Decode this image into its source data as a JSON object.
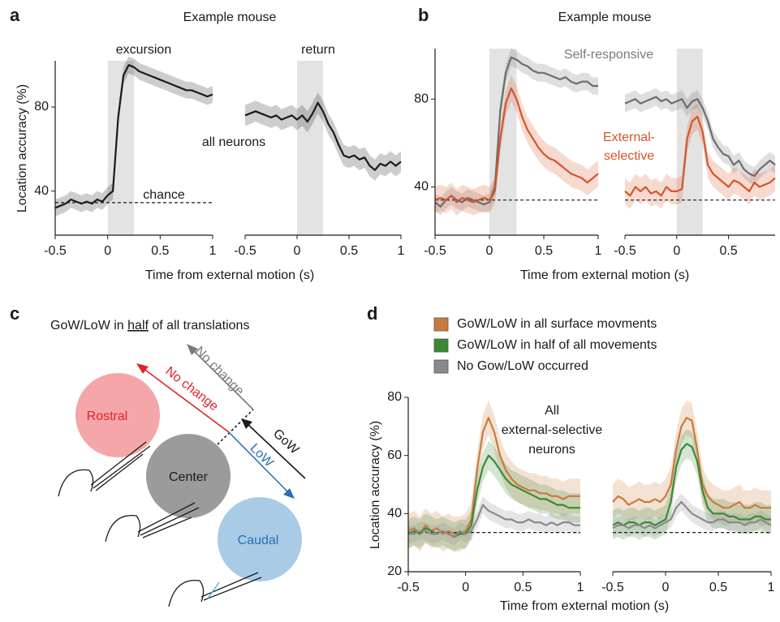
{
  "chart_data": [
    {
      "type": "line",
      "panel": "a",
      "title": "Example mouse",
      "xlabel": "Time from external motion (s)",
      "ylabel": "Location accuracy (%)",
      "x": [
        -0.5,
        -0.45,
        -0.4,
        -0.35,
        -0.3,
        -0.25,
        -0.2,
        -0.15,
        -0.1,
        -0.05,
        0,
        0.05,
        0.1,
        0.15,
        0.2,
        0.25,
        0.3,
        0.35,
        0.4,
        0.45,
        0.5,
        0.55,
        0.6,
        0.65,
        0.7,
        0.75,
        0.8,
        0.85,
        0.9,
        0.95,
        1
      ],
      "xlim": [
        -0.5,
        1
      ],
      "xticks": [
        -0.5,
        0,
        0.5,
        1
      ],
      "ylim": [
        19,
        102
      ],
      "yticks": [
        40,
        80
      ],
      "shade": [
        0,
        0.25
      ],
      "chance": 34.5,
      "series": [
        {
          "color": "#1a1a1a",
          "error": 4,
          "values": [
            32,
            33,
            34,
            36,
            35,
            34,
            35,
            34,
            36,
            35,
            38,
            40,
            75,
            95,
            100,
            99,
            97,
            96,
            95,
            94,
            93,
            92,
            91,
            90,
            89,
            88,
            88,
            87,
            86,
            85,
            86
          ]
        }
      ],
      "annotations": [
        {
          "text": "excursion",
          "color": "#1a1a1a"
        },
        {
          "text": "chance",
          "color": "#1a1a1a"
        }
      ]
    },
    {
      "type": "line",
      "x": [
        -0.5,
        -0.45,
        -0.4,
        -0.35,
        -0.3,
        -0.25,
        -0.2,
        -0.15,
        -0.1,
        -0.05,
        0,
        0.05,
        0.1,
        0.15,
        0.2,
        0.25,
        0.3,
        0.35,
        0.4,
        0.45,
        0.5,
        0.55,
        0.6,
        0.65,
        0.7,
        0.75,
        0.8,
        0.85,
        0.9,
        0.95,
        1
      ],
      "xlim": [
        -0.5,
        1
      ],
      "xticks": [
        -0.5,
        0,
        0.5,
        1
      ],
      "ylim": [
        19,
        102
      ],
      "shade": [
        0,
        0.25
      ],
      "series": [
        {
          "color": "#1a1a1a",
          "error": 5,
          "values": [
            76,
            77,
            78,
            77,
            76,
            75,
            76,
            74,
            75,
            76,
            74,
            76,
            73,
            77,
            82,
            78,
            72,
            68,
            62,
            57,
            56,
            57,
            55,
            56,
            52,
            50,
            53,
            52,
            54,
            52,
            54
          ]
        }
      ],
      "annotations": [
        {
          "text": "return",
          "color": "#1a1a1a"
        },
        {
          "text": "all neurons",
          "color": "#1a1a1a"
        }
      ]
    },
    {
      "type": "line",
      "panel": "b",
      "title": "Example mouse",
      "xlabel": "Time from external motion (s)",
      "x": [
        -0.5,
        -0.45,
        -0.4,
        -0.35,
        -0.3,
        -0.25,
        -0.2,
        -0.15,
        -0.1,
        -0.05,
        0,
        0.05,
        0.1,
        0.15,
        0.2,
        0.25,
        0.3,
        0.35,
        0.4,
        0.45,
        0.5,
        0.55,
        0.6,
        0.65,
        0.7,
        0.75,
        0.8,
        0.85,
        0.9,
        0.95,
        1
      ],
      "xlim": [
        -0.5,
        1
      ],
      "xticks": [
        -0.5,
        0,
        0.5,
        1
      ],
      "ylim": [
        18,
        103
      ],
      "yticks": [
        40,
        80
      ],
      "shade": [
        0,
        0.25
      ],
      "chance": 34,
      "series": [
        {
          "color": "#6d6d6d",
          "error": 4,
          "values": [
            33,
            31,
            34,
            36,
            34,
            33,
            35,
            34,
            33,
            32,
            33,
            40,
            75,
            92,
            99,
            98,
            96,
            95,
            93,
            92,
            92,
            91,
            90,
            89,
            90,
            88,
            87,
            88,
            88,
            86,
            86
          ]
        },
        {
          "color": "#d4552b",
          "error": 6,
          "values": [
            34,
            35,
            34,
            36,
            33,
            35,
            34,
            33,
            34,
            35,
            34,
            38,
            62,
            78,
            85,
            80,
            72,
            66,
            62,
            58,
            55,
            53,
            52,
            50,
            48,
            46,
            45,
            44,
            42,
            44,
            46
          ]
        }
      ],
      "annotations": [
        {
          "text": "Self-responsive",
          "color": "#7a7a7a"
        }
      ]
    },
    {
      "type": "line",
      "x": [
        -0.5,
        -0.45,
        -0.4,
        -0.35,
        -0.3,
        -0.25,
        -0.2,
        -0.15,
        -0.1,
        -0.05,
        0,
        0.05,
        0.1,
        0.15,
        0.2,
        0.25,
        0.3,
        0.35,
        0.4,
        0.45,
        0.5,
        0.55,
        0.6,
        0.65,
        0.7,
        0.75,
        0.8,
        0.85,
        0.9,
        0.95
      ],
      "xlim": [
        -0.5,
        0.95
      ],
      "xticks": [
        -0.5,
        0,
        0.5
      ],
      "ylim": [
        18,
        103
      ],
      "shade": [
        0,
        0.25
      ],
      "chance": 34,
      "series": [
        {
          "color": "#6d6d6d",
          "error": 4,
          "values": [
            78,
            79,
            80,
            78,
            79,
            80,
            81,
            79,
            80,
            78,
            79,
            80,
            76,
            79,
            80,
            76,
            70,
            62,
            58,
            55,
            54,
            50,
            52,
            48,
            46,
            45,
            48,
            50,
            52,
            50
          ]
        },
        {
          "color": "#d4552b",
          "error": 6,
          "values": [
            38,
            36,
            40,
            38,
            40,
            37,
            38,
            36,
            40,
            38,
            38,
            39,
            62,
            70,
            72,
            65,
            50,
            46,
            44,
            42,
            40,
            43,
            42,
            40,
            38,
            42,
            40,
            41,
            42,
            44
          ]
        }
      ],
      "annotations": [
        {
          "text": "External-",
          "color": "#d4552b"
        },
        {
          "text": "selective",
          "color": "#d4552b"
        }
      ]
    },
    {
      "type": "line",
      "panel": "d",
      "xlabel": "Time from external motion (s)",
      "ylabel": "Location accuracy (%)",
      "x": [
        -0.5,
        -0.45,
        -0.4,
        -0.35,
        -0.3,
        -0.25,
        -0.2,
        -0.15,
        -0.1,
        -0.05,
        0,
        0.05,
        0.1,
        0.15,
        0.2,
        0.25,
        0.3,
        0.35,
        0.4,
        0.45,
        0.5,
        0.55,
        0.6,
        0.65,
        0.7,
        0.75,
        0.8,
        0.85,
        0.9,
        0.95,
        1
      ],
      "xlim": [
        -0.5,
        1
      ],
      "xticks": [
        -0.5,
        0,
        0.5,
        1
      ],
      "ylim": [
        20,
        80
      ],
      "yticks": [
        20,
        40,
        60,
        80
      ],
      "chance": 33.5,
      "series": [
        {
          "name": "GoW/LoW in all surface movments",
          "color": "#c97a3a",
          "error": 6,
          "values": [
            34,
            35,
            33,
            36,
            34,
            35,
            33,
            34,
            33,
            33,
            34,
            38,
            55,
            68,
            73,
            68,
            60,
            55,
            52,
            50,
            49,
            48,
            48,
            47,
            47,
            46,
            46,
            45,
            46,
            46,
            46
          ]
        },
        {
          "name": "GoW/LoW in half of all movements",
          "color": "#3a8a35",
          "error": 5,
          "values": [
            33,
            34,
            33,
            35,
            34,
            33,
            34,
            33,
            32,
            33,
            33,
            36,
            48,
            56,
            60,
            58,
            55,
            52,
            50,
            49,
            48,
            47,
            46,
            45,
            45,
            44,
            43,
            43,
            42,
            42,
            42
          ]
        },
        {
          "name": "No Gow/LoW occurred",
          "color": "#8a8a8a",
          "error": 3,
          "values": [
            33,
            33,
            34,
            34,
            33,
            33,
            34,
            33,
            32,
            34,
            33,
            34,
            38,
            43,
            41,
            40,
            39,
            38,
            38,
            37,
            37,
            38,
            37,
            37,
            36,
            37,
            36,
            37,
            37,
            36,
            36
          ]
        }
      ],
      "annotations": [
        {
          "text": "All",
          "color": "#1a1a1a"
        },
        {
          "text": "external-selective",
          "color": "#1a1a1a"
        },
        {
          "text": "neurons",
          "color": "#1a1a1a"
        }
      ]
    },
    {
      "type": "line",
      "x": [
        -0.5,
        -0.45,
        -0.4,
        -0.35,
        -0.3,
        -0.25,
        -0.2,
        -0.15,
        -0.1,
        -0.05,
        0,
        0.05,
        0.1,
        0.15,
        0.2,
        0.25,
        0.3,
        0.35,
        0.4,
        0.45,
        0.5,
        0.55,
        0.6,
        0.65,
        0.7,
        0.75,
        0.8,
        0.85,
        0.9,
        0.95,
        1
      ],
      "xlim": [
        -0.5,
        1
      ],
      "xticks": [
        -0.5,
        0,
        0.5,
        1
      ],
      "ylim": [
        20,
        80
      ],
      "chance": 33.5,
      "series": [
        {
          "color": "#c97a3a",
          "error": 6,
          "values": [
            44,
            46,
            45,
            43,
            44,
            45,
            44,
            44,
            45,
            44,
            46,
            50,
            62,
            70,
            73,
            72,
            62,
            50,
            46,
            44,
            43,
            42,
            42,
            43,
            44,
            42,
            42,
            43,
            42,
            42,
            42
          ]
        },
        {
          "color": "#3a8a35",
          "error": 5,
          "values": [
            36,
            37,
            36,
            37,
            37,
            36,
            37,
            37,
            36,
            37,
            38,
            44,
            56,
            62,
            64,
            63,
            58,
            48,
            42,
            40,
            40,
            40,
            39,
            39,
            38,
            38,
            38,
            39,
            39,
            38,
            38
          ]
        },
        {
          "color": "#8a8a8a",
          "error": 3,
          "values": [
            35,
            36,
            36,
            35,
            36,
            36,
            35,
            36,
            35,
            36,
            37,
            38,
            42,
            44,
            42,
            40,
            39,
            38,
            37,
            37,
            38,
            38,
            37,
            37,
            37,
            36,
            37,
            37,
            38,
            37,
            36
          ]
        }
      ],
      "annotations": []
    }
  ],
  "diagram": {
    "panel": "c",
    "title": [
      "GoW/LoW in ",
      "half",
      " of all translations"
    ],
    "regions": [
      "Rostral",
      "Center",
      "Caudal"
    ],
    "arrows": [
      "No change",
      "No change",
      "GoW",
      "LoW"
    ]
  }
}
